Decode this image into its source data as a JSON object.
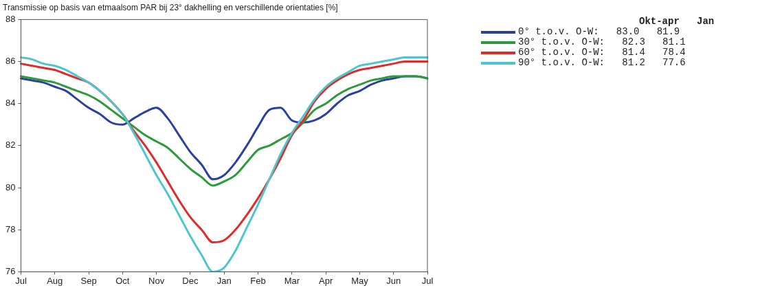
{
  "chart_data": {
    "type": "line",
    "title": "Transmissie op basis van etmaalsom PAR bij 23° dakhelling en verschillende orientaties [%]",
    "categories": [
      "Jul",
      null,
      null,
      "Aug",
      null,
      null,
      "Sep",
      null,
      null,
      "Oct",
      null,
      null,
      "Nov",
      null,
      null,
      "Dec",
      null,
      null,
      "Jan",
      null,
      null,
      "Feb",
      null,
      null,
      "Mar",
      null,
      null,
      "Apr",
      null,
      null,
      "May",
      null,
      null,
      "Jun",
      null,
      null,
      "Jul"
    ],
    "legend_title": "Okt-apr   Jan",
    "series": [
      {
        "name": "0° t.o.v. O-W:   83.0   81.9",
        "color": "#2b3f9e",
        "values": [
          85.2,
          85.1,
          85.0,
          84.8,
          84.6,
          84.2,
          83.8,
          83.5,
          83.1,
          83.0,
          83.3,
          83.6,
          83.8,
          83.3,
          82.5,
          81.7,
          81.1,
          80.4,
          80.6,
          81.2,
          82.0,
          82.9,
          83.7,
          83.8,
          83.2,
          83.1,
          83.2,
          83.5,
          84.0,
          84.4,
          84.6,
          84.9,
          85.1,
          85.2,
          85.3,
          85.3,
          85.2
        ]
      },
      {
        "name": "30° t.o.v. O-W:   82.3   81.1",
        "color": "#2a9a3a",
        "values": [
          85.3,
          85.2,
          85.1,
          85.0,
          84.8,
          84.6,
          84.4,
          84.1,
          83.7,
          83.3,
          82.9,
          82.5,
          82.2,
          81.9,
          81.4,
          80.9,
          80.5,
          80.1,
          80.3,
          80.6,
          81.2,
          81.8,
          82.0,
          82.3,
          82.6,
          83.1,
          83.7,
          84.0,
          84.4,
          84.7,
          84.9,
          85.1,
          85.2,
          85.3,
          85.3,
          85.3,
          85.2
        ]
      },
      {
        "name": "60° t.o.v. O-W:   81.4   78.4",
        "color": "#e02b2b",
        "values": [
          85.9,
          85.8,
          85.7,
          85.6,
          85.4,
          85.2,
          85.0,
          84.6,
          84.1,
          83.5,
          82.7,
          82.0,
          81.2,
          80.3,
          79.4,
          78.6,
          78.0,
          77.4,
          77.5,
          78.0,
          78.7,
          79.5,
          80.4,
          81.4,
          82.5,
          83.2,
          84.1,
          84.7,
          85.1,
          85.4,
          85.6,
          85.7,
          85.8,
          85.9,
          86.0,
          86.0,
          86.0
        ]
      },
      {
        "name": "90° t.o.v. O-W:   81.2   77.6",
        "color": "#4cc6cc",
        "values": [
          86.2,
          86.1,
          85.9,
          85.8,
          85.6,
          85.3,
          85.0,
          84.6,
          84.1,
          83.5,
          82.6,
          81.6,
          80.6,
          79.7,
          78.7,
          77.7,
          76.8,
          76.0,
          76.2,
          77.0,
          78.1,
          79.2,
          80.4,
          81.6,
          82.6,
          83.4,
          84.2,
          84.8,
          85.2,
          85.5,
          85.8,
          85.9,
          86.0,
          86.1,
          86.2,
          86.2,
          86.2
        ]
      }
    ],
    "ylim": [
      76,
      88
    ],
    "yticks": [
      76,
      78,
      80,
      82,
      84,
      86,
      88
    ],
    "grid": false,
    "legend": "right",
    "marker": "none",
    "line_style": "solid"
  }
}
